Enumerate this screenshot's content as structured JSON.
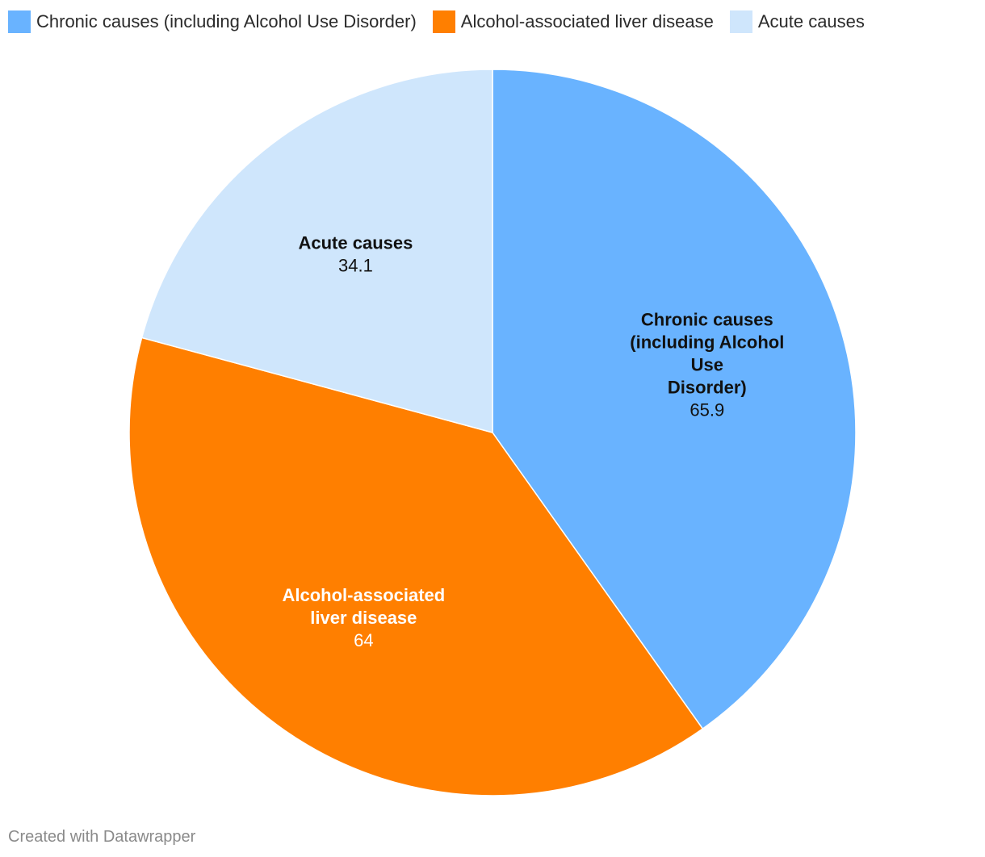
{
  "legend": [
    {
      "label": "Chronic causes (including Alcohol Use Disorder)",
      "color": "#69b3ff"
    },
    {
      "label": "Alcohol-associated liver disease",
      "color": "#ff7f00"
    },
    {
      "label": "Acute causes",
      "color": "#cfe6fc"
    }
  ],
  "chart_data": {
    "type": "pie",
    "slices": [
      {
        "name": "Chronic causes (including Alcohol Use Disorder)",
        "label_lines": [
          "Chronic causes",
          "(including Alcohol",
          "Use",
          "Disorder)"
        ],
        "value": 65.9,
        "value_label": "65.9",
        "color": "#69b3ff",
        "text_color": "#111111"
      },
      {
        "name": "Alcohol-associated liver disease",
        "label_lines": [
          "Alcohol-associated",
          "liver disease"
        ],
        "value": 64,
        "value_label": "64",
        "color": "#ff7f00",
        "text_color": "#ffffff"
      },
      {
        "name": "Acute causes",
        "label_lines": [
          "Acute causes"
        ],
        "value": 34.1,
        "value_label": "34.1",
        "color": "#cfe6fc",
        "text_color": "#111111"
      }
    ],
    "legend_position": "top-left",
    "start_angle": "12 o'clock",
    "direction": "clockwise"
  },
  "footer": {
    "credit": "Created with Datawrapper"
  }
}
